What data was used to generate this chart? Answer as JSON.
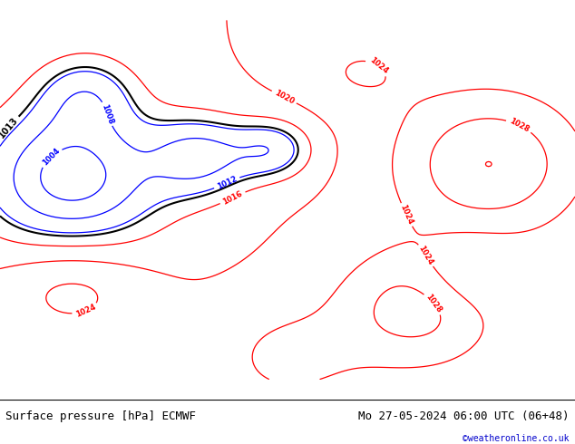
{
  "title_left": "Surface pressure [hPa] ECMWF",
  "title_right": "Mo 27-05-2024 06:00 UTC (06+48)",
  "credit": "©weatheronline.co.uk",
  "fig_width": 6.34,
  "fig_height": 4.9,
  "dpi": 100,
  "font_size_bottom": 9,
  "credit_color": "#0000cc",
  "bg_color": "#c8ddb8",
  "sea_color": "#b8ccb8"
}
